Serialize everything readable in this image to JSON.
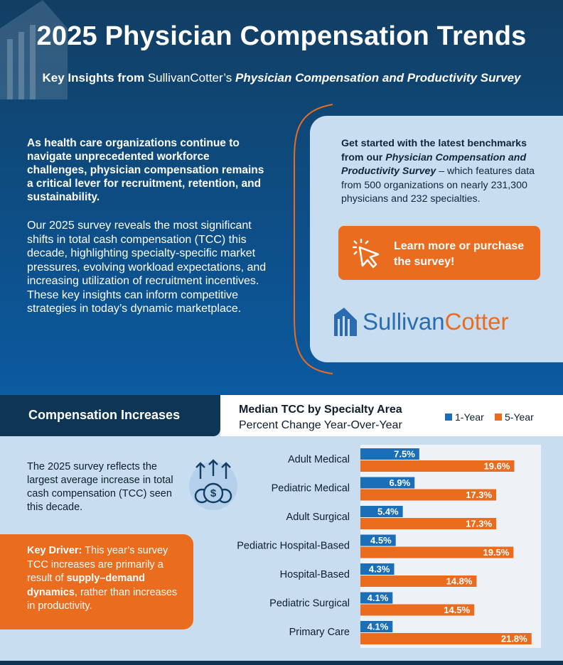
{
  "hero": {
    "title": "2025 Physician Compensation Trends",
    "subtitle_prefix": "Key Insights from ",
    "subtitle_brand": "SullivanCotter’s ",
    "subtitle_survey": "Physician Compensation and Productivity Survey",
    "intro_bold": "As health care organizations continue to navigate unprecedented workforce challenges, physician compensation remains a critical lever for recruitment, retention, and sustainability.",
    "intro_body": "Our 2025 survey reveals the most significant shifts in total cash compensation (TCC) this decade, highlighting specialty-specific market pressures, evolving workload expectations, and increasing utilization of recruitment incentives. These key insights can inform competitive strategies in today’s dynamic marketplace."
  },
  "card": {
    "lead": "Get started with the latest benchmarks from our ",
    "survey": "Physician Compensation and Productivity Survey",
    "rest": " – which features data from 500 organizations on nearly 231,300 physicians and 232 specialties.",
    "cta_label": "Learn more or purchase the survey!",
    "brand_part1": "Sullivan",
    "brand_part2": "Cotter"
  },
  "section": {
    "tab_label": "Compensation Increases",
    "body": "The 2025 survey reflects the largest average increase in total cash compensation (TCC) seen this decade.",
    "driver_label": "Key Driver:",
    "driver_text1": " This year’s survey TCC increases are primarily a result of ",
    "driver_bold": "supply–demand dynamics",
    "driver_text2": ", rather than increases in productivity."
  },
  "colors": {
    "navy": "#0e3654",
    "blue": "#1a6fb8",
    "orange": "#e96c1f",
    "light": "#c8def0"
  },
  "chart_data": {
    "type": "bar",
    "title": "Median TCC by Specialty Area",
    "subtitle": "Percent Change Year-Over-Year",
    "categories": [
      "Adult Medical",
      "Pediatric Medical",
      "Adult Surgical",
      "Pediatric Hospital-Based",
      "Hospital-Based",
      "Pediatric Surgical",
      "Primary Care"
    ],
    "series": [
      {
        "name": "1-Year",
        "values": [
          7.5,
          6.9,
          5.4,
          4.5,
          4.3,
          4.1,
          4.1
        ],
        "labels": [
          "7.5%",
          "6.9%",
          "5.4%",
          "4.5%",
          "4.3%",
          "4.1%",
          "4.1%"
        ],
        "color": "#1a6fb8"
      },
      {
        "name": "5-Year",
        "values": [
          19.6,
          17.3,
          17.3,
          19.5,
          14.8,
          14.5,
          21.8
        ],
        "labels": [
          "19.6%",
          "17.3%",
          "17.3%",
          "19.5%",
          "14.8%",
          "14.5%",
          "21.8%"
        ],
        "color": "#e96c1f"
      }
    ],
    "orientation": "horizontal",
    "xlim": [
      0,
      23
    ],
    "grid": false,
    "legend_position": "top-right"
  }
}
